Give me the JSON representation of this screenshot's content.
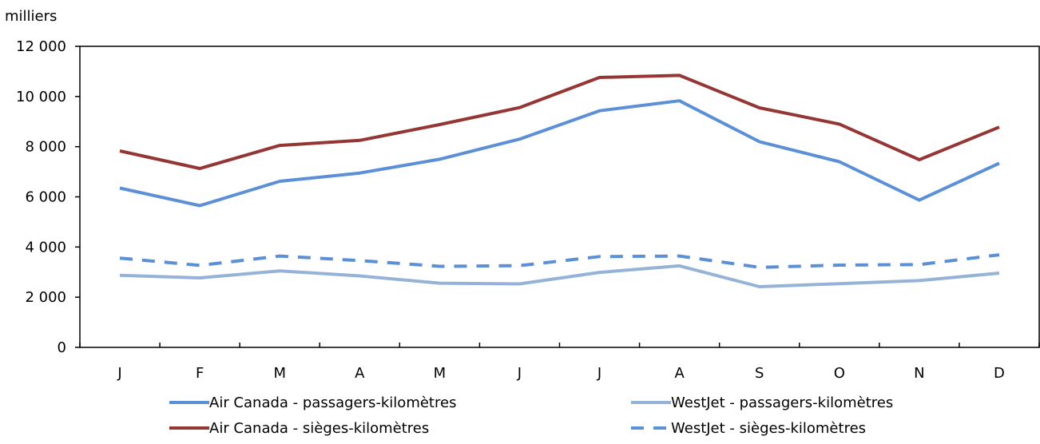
{
  "chart_data": {
    "type": "line",
    "unit_label": "milliers",
    "categories": [
      "J",
      "F",
      "M",
      "A",
      "M",
      "J",
      "J",
      "A",
      "S",
      "O",
      "N",
      "D"
    ],
    "ylim": [
      0,
      12000
    ],
    "yticks": [
      {
        "value": 0,
        "label": "0"
      },
      {
        "value": 2000,
        "label": "2 000"
      },
      {
        "value": 4000,
        "label": "4 000"
      },
      {
        "value": 6000,
        "label": "6 000"
      },
      {
        "value": 8000,
        "label": "8 000"
      },
      {
        "value": 10000,
        "label": "10 000"
      },
      {
        "value": 12000,
        "label": "12 000"
      }
    ],
    "grid": false,
    "legend_position": "bottom",
    "series": [
      {
        "name": "Air Canada - passagers-kilomètres",
        "color": "#5b8fd6",
        "dash": "solid",
        "values": [
          6350,
          5650,
          6620,
          6950,
          7500,
          8300,
          9430,
          9830,
          8200,
          7400,
          5870,
          7340
        ]
      },
      {
        "name": "Air Canada - sièges-kilomètres",
        "color": "#943634",
        "dash": "solid",
        "values": [
          7830,
          7130,
          8050,
          8250,
          8880,
          9560,
          10760,
          10840,
          9550,
          8900,
          7480,
          8780
        ]
      },
      {
        "name": "WestJet - passagers-kilomètres",
        "color": "#95b3d7",
        "dash": "solid",
        "values": [
          2870,
          2770,
          3050,
          2850,
          2560,
          2530,
          2990,
          3250,
          2420,
          2540,
          2660,
          2960
        ]
      },
      {
        "name": "WestJet - sièges-kilomètres",
        "color": "#5b8fd6",
        "dash": "dashed",
        "values": [
          3560,
          3270,
          3640,
          3460,
          3230,
          3260,
          3620,
          3640,
          3190,
          3280,
          3300,
          3690
        ]
      }
    ]
  }
}
